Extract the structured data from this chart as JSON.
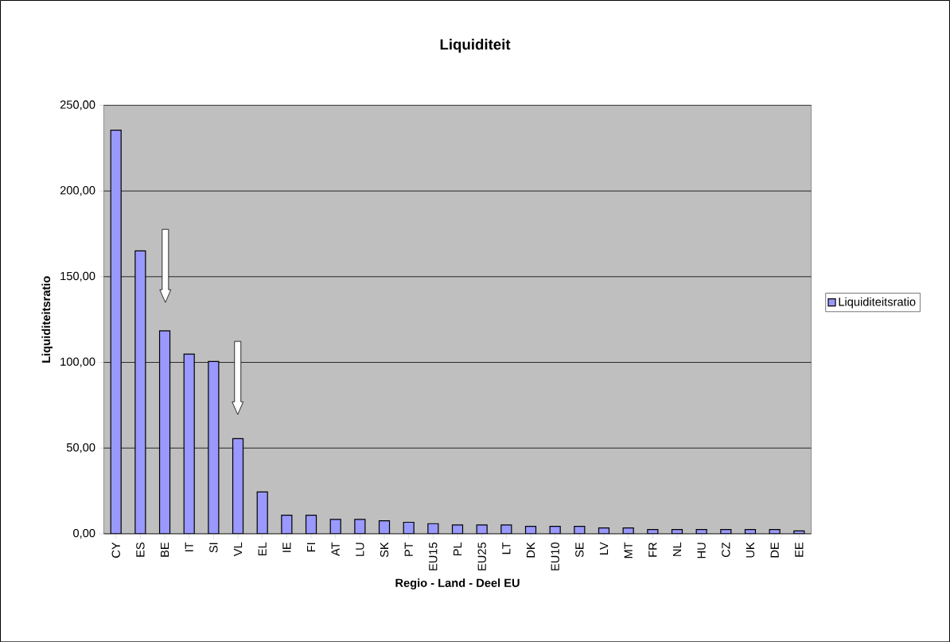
{
  "chart_data": {
    "type": "bar",
    "title": "Liquiditeit",
    "xlabel": "Regio - Land - Deel EU",
    "ylabel": "Liquiditeitsratio",
    "categories": [
      "CY",
      "ES",
      "BE",
      "IT",
      "SI",
      "VL",
      "EL",
      "IE",
      "FI",
      "AT",
      "LU",
      "SK",
      "PT",
      "EU15",
      "PL",
      "EU25",
      "LT",
      "DK",
      "EU10",
      "SE",
      "LV",
      "MT",
      "FR",
      "NL",
      "HU",
      "CZ",
      "UK",
      "DE",
      "EE"
    ],
    "series": [
      {
        "name": "Liquiditeitsratio",
        "color": "#9999ff",
        "values": [
          235.5,
          165.1,
          118.4,
          104.8,
          100.5,
          55.5,
          24.4,
          10.8,
          10.8,
          8.4,
          8.4,
          7.6,
          6.7,
          5.9,
          5.1,
          5.1,
          5.1,
          4.3,
          4.3,
          4.3,
          3.4,
          3.4,
          2.5,
          2.5,
          2.5,
          2.5,
          2.5,
          2.5,
          1.7
        ]
      }
    ],
    "ylim": [
      0,
      250
    ],
    "yticks": [
      {
        "value": 0,
        "label": "0,00"
      },
      {
        "value": 50,
        "label": "50,00"
      },
      {
        "value": 100,
        "label": "100,00"
      },
      {
        "value": 150,
        "label": "150,00"
      },
      {
        "value": 200,
        "label": "200,00"
      },
      {
        "value": 250,
        "label": "250,00"
      }
    ],
    "grid": "y",
    "legend": "right"
  }
}
